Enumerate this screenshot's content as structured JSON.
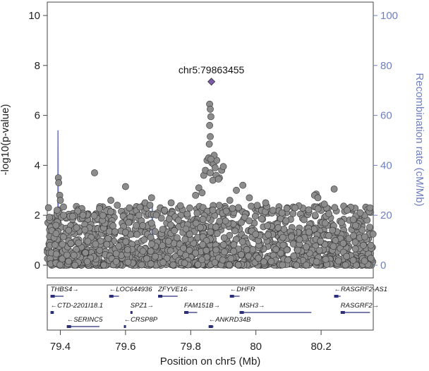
{
  "chart_data": {
    "type": "scatter",
    "title": "",
    "xlabel": "Position on chr5 (Mb)",
    "ylabel": "-log10(p-value)",
    "ylabel_right": "Recombination rate (cM/Mb)",
    "xlim": [
      79.36,
      80.36
    ],
    "ylim": [
      0,
      10
    ],
    "ylim_right": [
      0,
      100
    ],
    "x_ticks": [
      "79.4",
      "79.6",
      "79.8",
      "80",
      "80.2"
    ],
    "y_ticks": [
      "0",
      "2",
      "4",
      "6",
      "8",
      "10"
    ],
    "y_ticks_right": [
      "0",
      "20",
      "40",
      "60",
      "80",
      "100"
    ],
    "lead_snp": {
      "label": "chr5:79863455",
      "x": 79.8635,
      "y": 7.35,
      "color": "#7b5aa6"
    },
    "point_color": "#8c8c8c",
    "recomb_color": "#6f7fbf",
    "series": [
      {
        "kind": "scatter",
        "points": [
          [
            79.394,
            3.5
          ],
          [
            79.395,
            3.3
          ],
          [
            79.398,
            2.8
          ],
          [
            79.4,
            2.6
          ],
          [
            79.39,
            2.2
          ],
          [
            79.41,
            2.0
          ],
          [
            79.505,
            3.7
          ],
          [
            79.6,
            3.15
          ],
          [
            79.555,
            2.6
          ],
          [
            79.575,
            2.4
          ],
          [
            79.612,
            2.3
          ],
          [
            79.68,
            2.7
          ],
          [
            79.66,
            2.5
          ],
          [
            79.675,
            2.4
          ],
          [
            79.72,
            2.2
          ],
          [
            79.74,
            2.5
          ],
          [
            79.815,
            2.8
          ],
          [
            79.825,
            3.1
          ],
          [
            79.835,
            2.9
          ],
          [
            79.84,
            3.6
          ],
          [
            79.845,
            3.8
          ],
          [
            79.85,
            4.2
          ],
          [
            79.855,
            4.3
          ],
          [
            79.86,
            3.7
          ],
          [
            79.865,
            4.1
          ],
          [
            79.87,
            4.05
          ],
          [
            79.875,
            3.9
          ],
          [
            79.88,
            4.2
          ],
          [
            79.888,
            3.5
          ],
          [
            79.895,
            3.8
          ],
          [
            79.9,
            3.95
          ],
          [
            79.872,
            4.4
          ],
          [
            79.878,
            3.6
          ],
          [
            79.868,
            3.4
          ],
          [
            79.885,
            3.45
          ],
          [
            79.862,
            4.25
          ],
          [
            79.858,
            6.45
          ],
          [
            79.86,
            6.25
          ],
          [
            79.862,
            5.95
          ],
          [
            79.858,
            5.6
          ],
          [
            79.86,
            5.15
          ],
          [
            79.857,
            4.85
          ],
          [
            79.96,
            3.2
          ],
          [
            79.94,
            3.0
          ],
          [
            79.92,
            2.6
          ],
          [
            79.98,
            2.7
          ],
          [
            80.03,
            2.5
          ],
          [
            80.185,
            2.85
          ],
          [
            80.18,
            2.8
          ],
          [
            80.19,
            2.7
          ],
          [
            80.24,
            3.05
          ],
          [
            80.21,
            2.45
          ],
          [
            80.28,
            2.2
          ],
          [
            80.32,
            2.1
          ],
          [
            80.35,
            2.3
          ],
          [
            80.12,
            2.3
          ],
          [
            80.08,
            2.1
          ]
        ]
      },
      {
        "kind": "line",
        "name": "",
        "x": [
          79.36,
          79.385,
          79.392,
          79.393,
          79.394,
          79.396,
          79.4,
          79.45,
          79.5,
          79.55,
          79.6,
          79.606,
          79.607,
          79.61,
          79.65,
          79.68,
          79.682,
          79.683,
          79.685,
          79.7,
          79.75,
          79.8,
          79.86,
          79.9,
          79.95,
          80.0,
          80.05,
          80.1,
          80.15,
          80.2,
          80.25,
          80.3,
          80.36
        ],
        "y": [
          0.5,
          0.5,
          1.0,
          54,
          20,
          1.5,
          0.8,
          0.7,
          0.6,
          0.5,
          0.6,
          6,
          2,
          0.8,
          1.2,
          1.5,
          25,
          20,
          2,
          1.0,
          0.8,
          1.2,
          0.5,
          0.8,
          0.6,
          0.7,
          0.6,
          1.5,
          1.0,
          0.8,
          1.0,
          0.9,
          0.8
        ]
      }
    ],
    "genes": [
      {
        "name": "THBS4",
        "dir": "right",
        "start": 79.37,
        "end": 79.41,
        "row": 0
      },
      {
        "name": "LOC644936",
        "dir": "left",
        "start": 79.55,
        "end": 79.58,
        "row": 0
      },
      {
        "name": "ZFYVE16",
        "dir": "right",
        "start": 79.7,
        "end": 79.76,
        "row": 0
      },
      {
        "name": "DHFR",
        "dir": "left",
        "start": 79.92,
        "end": 79.95,
        "row": 0
      },
      {
        "name": "RASGRF2-AS1",
        "dir": "left",
        "start": 80.24,
        "end": 80.26,
        "row": 0
      },
      {
        "name": "CTD-2201I18.1",
        "dir": "left",
        "start": 79.37,
        "end": 79.38,
        "row": 1
      },
      {
        "name": "SPZ1",
        "dir": "right",
        "start": 79.615,
        "end": 79.62,
        "row": 1
      },
      {
        "name": "FAM151B",
        "dir": "right",
        "start": 79.78,
        "end": 79.82,
        "row": 1
      },
      {
        "name": "MSH3",
        "dir": "right",
        "start": 79.95,
        "end": 80.17,
        "row": 1
      },
      {
        "name": "RASGRF2",
        "dir": "right",
        "start": 80.26,
        "end": 80.35,
        "row": 1
      },
      {
        "name": "SERINC5",
        "dir": "left",
        "start": 79.42,
        "end": 79.52,
        "row": 2
      },
      {
        "name": "CRSP8P",
        "dir": "left",
        "start": 79.595,
        "end": 79.6,
        "row": 2
      },
      {
        "name": "ANKRD34B",
        "dir": "left",
        "start": 79.855,
        "end": 79.87,
        "row": 2
      }
    ]
  }
}
